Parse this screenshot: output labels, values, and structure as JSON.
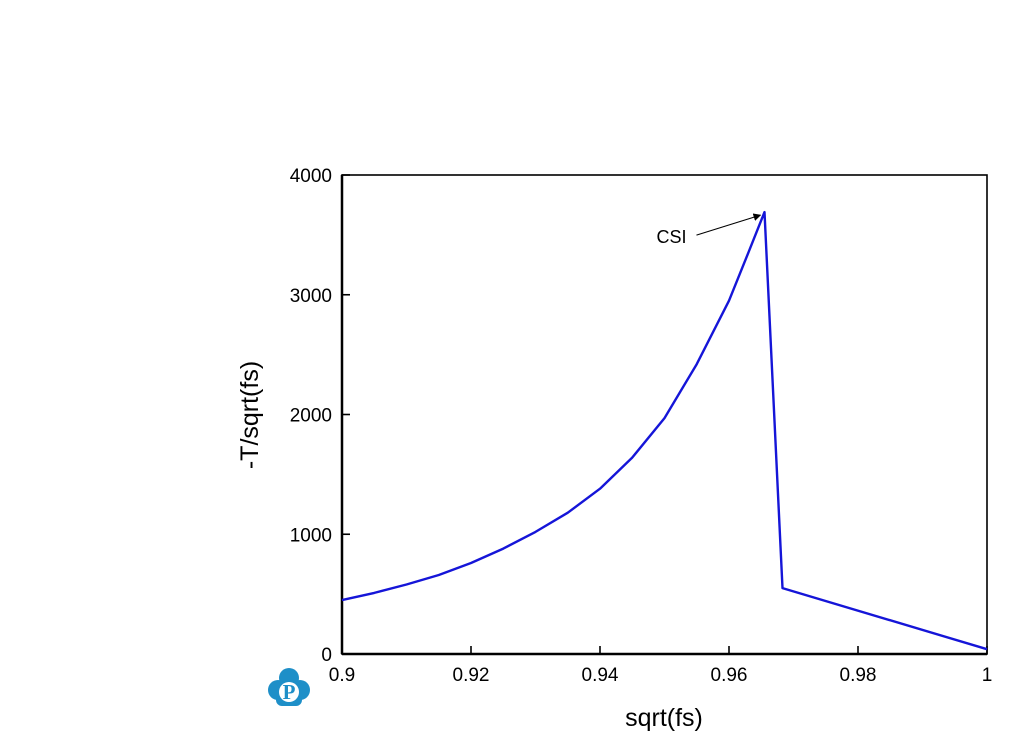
{
  "chart_data": {
    "type": "line",
    "xlabel": "sqrt(fs)",
    "ylabel": "-T/sqrt(fs)",
    "xlim": [
      0.9,
      1.0
    ],
    "ylim": [
      0,
      4000
    ],
    "xticks": [
      0.9,
      0.92,
      0.94,
      0.96,
      0.98,
      1
    ],
    "xtick_labels": [
      "0.9",
      "0.92",
      "0.94",
      "0.96",
      "0.98",
      "1"
    ],
    "yticks": [
      0,
      1000,
      2000,
      3000,
      4000
    ],
    "ytick_labels": [
      "0",
      "1000",
      "2000",
      "3000",
      "4000"
    ],
    "grid": false,
    "line_color": "#1515d8",
    "series": [
      {
        "x": [
          0.9,
          0.905,
          0.91,
          0.915,
          0.92,
          0.925,
          0.93,
          0.935,
          0.94,
          0.945,
          0.95,
          0.955,
          0.96,
          0.963,
          0.9655,
          0.9683,
          1.0
        ],
        "y": [
          450,
          510,
          580,
          660,
          760,
          880,
          1020,
          1180,
          1380,
          1640,
          1970,
          2420,
          2950,
          3350,
          3690,
          550,
          40
        ]
      }
    ],
    "annotations": [
      {
        "text": "CSI",
        "x": 0.9655,
        "y": 3690,
        "arrow": true
      }
    ]
  },
  "logo": {
    "letter": "P",
    "color": "#1e8fc8"
  }
}
